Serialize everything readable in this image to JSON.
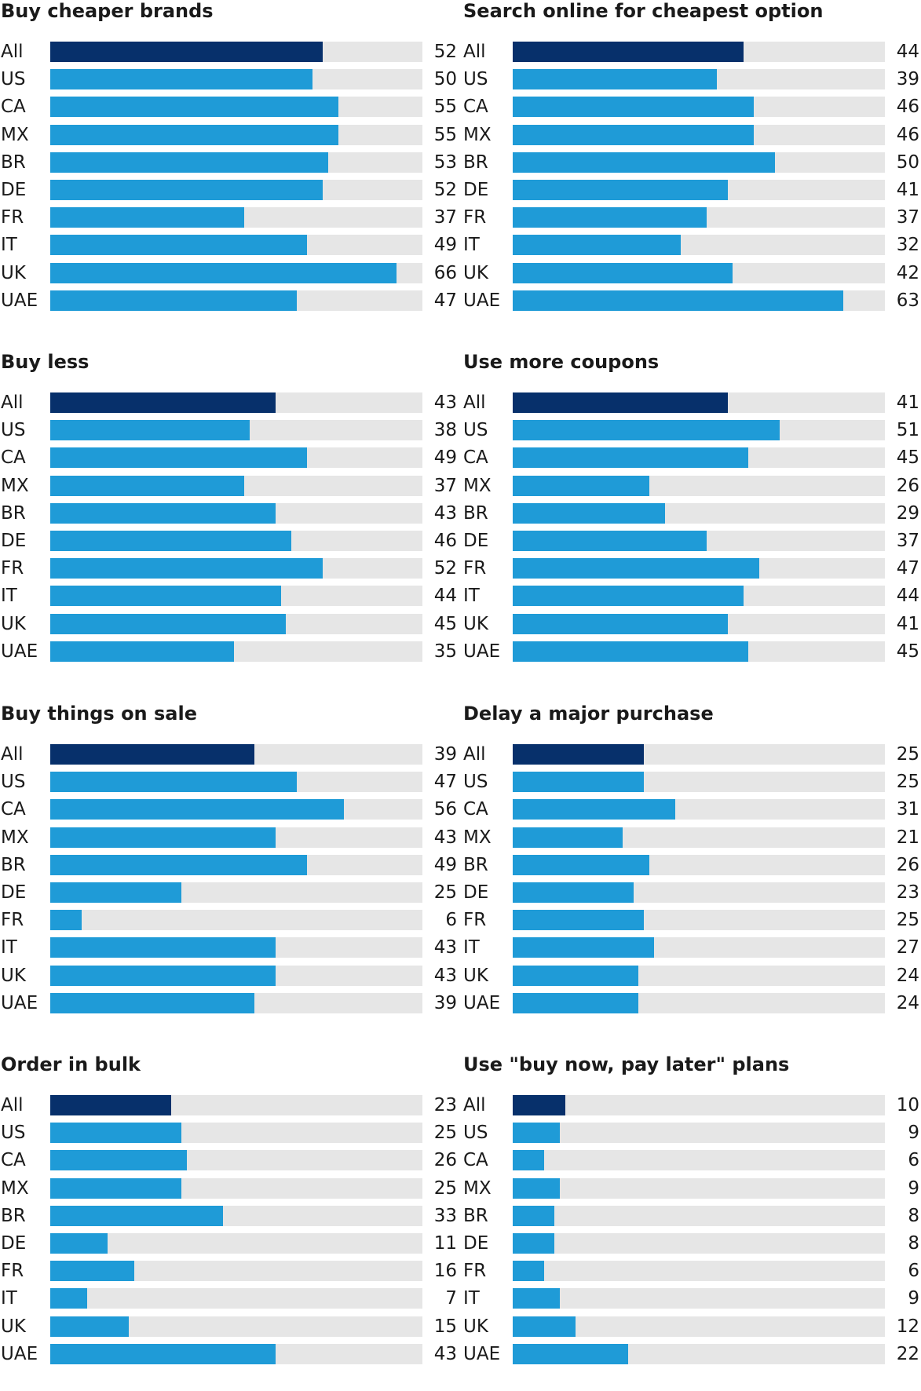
{
  "colors": {
    "highlight": "#07306b",
    "bar": "#1f9bd7",
    "track": "#e6e6e6"
  },
  "chart_data": [
    {
      "type": "bar",
      "orientation": "horizontal",
      "title": "Buy cheaper brands",
      "categories": [
        "All",
        "US",
        "CA",
        "MX",
        "BR",
        "DE",
        "FR",
        "IT",
        "UK",
        "UAE"
      ],
      "values": [
        52,
        50,
        55,
        55,
        53,
        52,
        37,
        49,
        66,
        47
      ],
      "xlim": [
        0,
        71
      ],
      "grid": false,
      "legend": "none"
    },
    {
      "type": "bar",
      "orientation": "horizontal",
      "title": "Search online for cheapest option",
      "categories": [
        "All",
        "US",
        "CA",
        "MX",
        "BR",
        "DE",
        "FR",
        "IT",
        "UK",
        "UAE"
      ],
      "values": [
        44,
        39,
        46,
        46,
        50,
        41,
        37,
        32,
        42,
        63
      ],
      "xlim": [
        0,
        71
      ],
      "grid": false,
      "legend": "none"
    },
    {
      "type": "bar",
      "orientation": "horizontal",
      "title": "Buy less",
      "categories": [
        "All",
        "US",
        "CA",
        "MX",
        "BR",
        "DE",
        "FR",
        "IT",
        "UK",
        "UAE"
      ],
      "values": [
        43,
        38,
        49,
        37,
        43,
        46,
        52,
        44,
        45,
        35
      ],
      "xlim": [
        0,
        71
      ],
      "grid": false,
      "legend": "none"
    },
    {
      "type": "bar",
      "orientation": "horizontal",
      "title": "Use more coupons",
      "categories": [
        "All",
        "US",
        "CA",
        "MX",
        "BR",
        "DE",
        "FR",
        "IT",
        "UK",
        "UAE"
      ],
      "values": [
        41,
        51,
        45,
        26,
        29,
        37,
        47,
        44,
        41,
        45
      ],
      "xlim": [
        0,
        71
      ],
      "grid": false,
      "legend": "none"
    },
    {
      "type": "bar",
      "orientation": "horizontal",
      "title": "Buy things on sale",
      "categories": [
        "All",
        "US",
        "CA",
        "MX",
        "BR",
        "DE",
        "FR",
        "IT",
        "UK",
        "UAE"
      ],
      "values": [
        39,
        47,
        56,
        43,
        49,
        25,
        6,
        43,
        43,
        39
      ],
      "xlim": [
        0,
        71
      ],
      "grid": false,
      "legend": "none"
    },
    {
      "type": "bar",
      "orientation": "horizontal",
      "title": "Delay a major purchase",
      "categories": [
        "All",
        "US",
        "CA",
        "MX",
        "BR",
        "DE",
        "FR",
        "IT",
        "UK",
        "UAE"
      ],
      "values": [
        25,
        25,
        31,
        21,
        26,
        23,
        25,
        27,
        24,
        24
      ],
      "xlim": [
        0,
        71
      ],
      "grid": false,
      "legend": "none"
    },
    {
      "type": "bar",
      "orientation": "horizontal",
      "title": "Order in bulk",
      "categories": [
        "All",
        "US",
        "CA",
        "MX",
        "BR",
        "DE",
        "FR",
        "IT",
        "UK",
        "UAE"
      ],
      "values": [
        23,
        25,
        26,
        25,
        33,
        11,
        16,
        7,
        15,
        43
      ],
      "xlim": [
        0,
        71
      ],
      "grid": false,
      "legend": "none"
    },
    {
      "type": "bar",
      "orientation": "horizontal",
      "title": "Use \"buy now, pay later\" plans",
      "categories": [
        "All",
        "US",
        "CA",
        "MX",
        "BR",
        "DE",
        "FR",
        "IT",
        "UK",
        "UAE"
      ],
      "values": [
        10,
        9,
        6,
        9,
        8,
        8,
        6,
        9,
        12,
        22
      ],
      "xlim": [
        0,
        71
      ],
      "grid": false,
      "legend": "none"
    }
  ]
}
